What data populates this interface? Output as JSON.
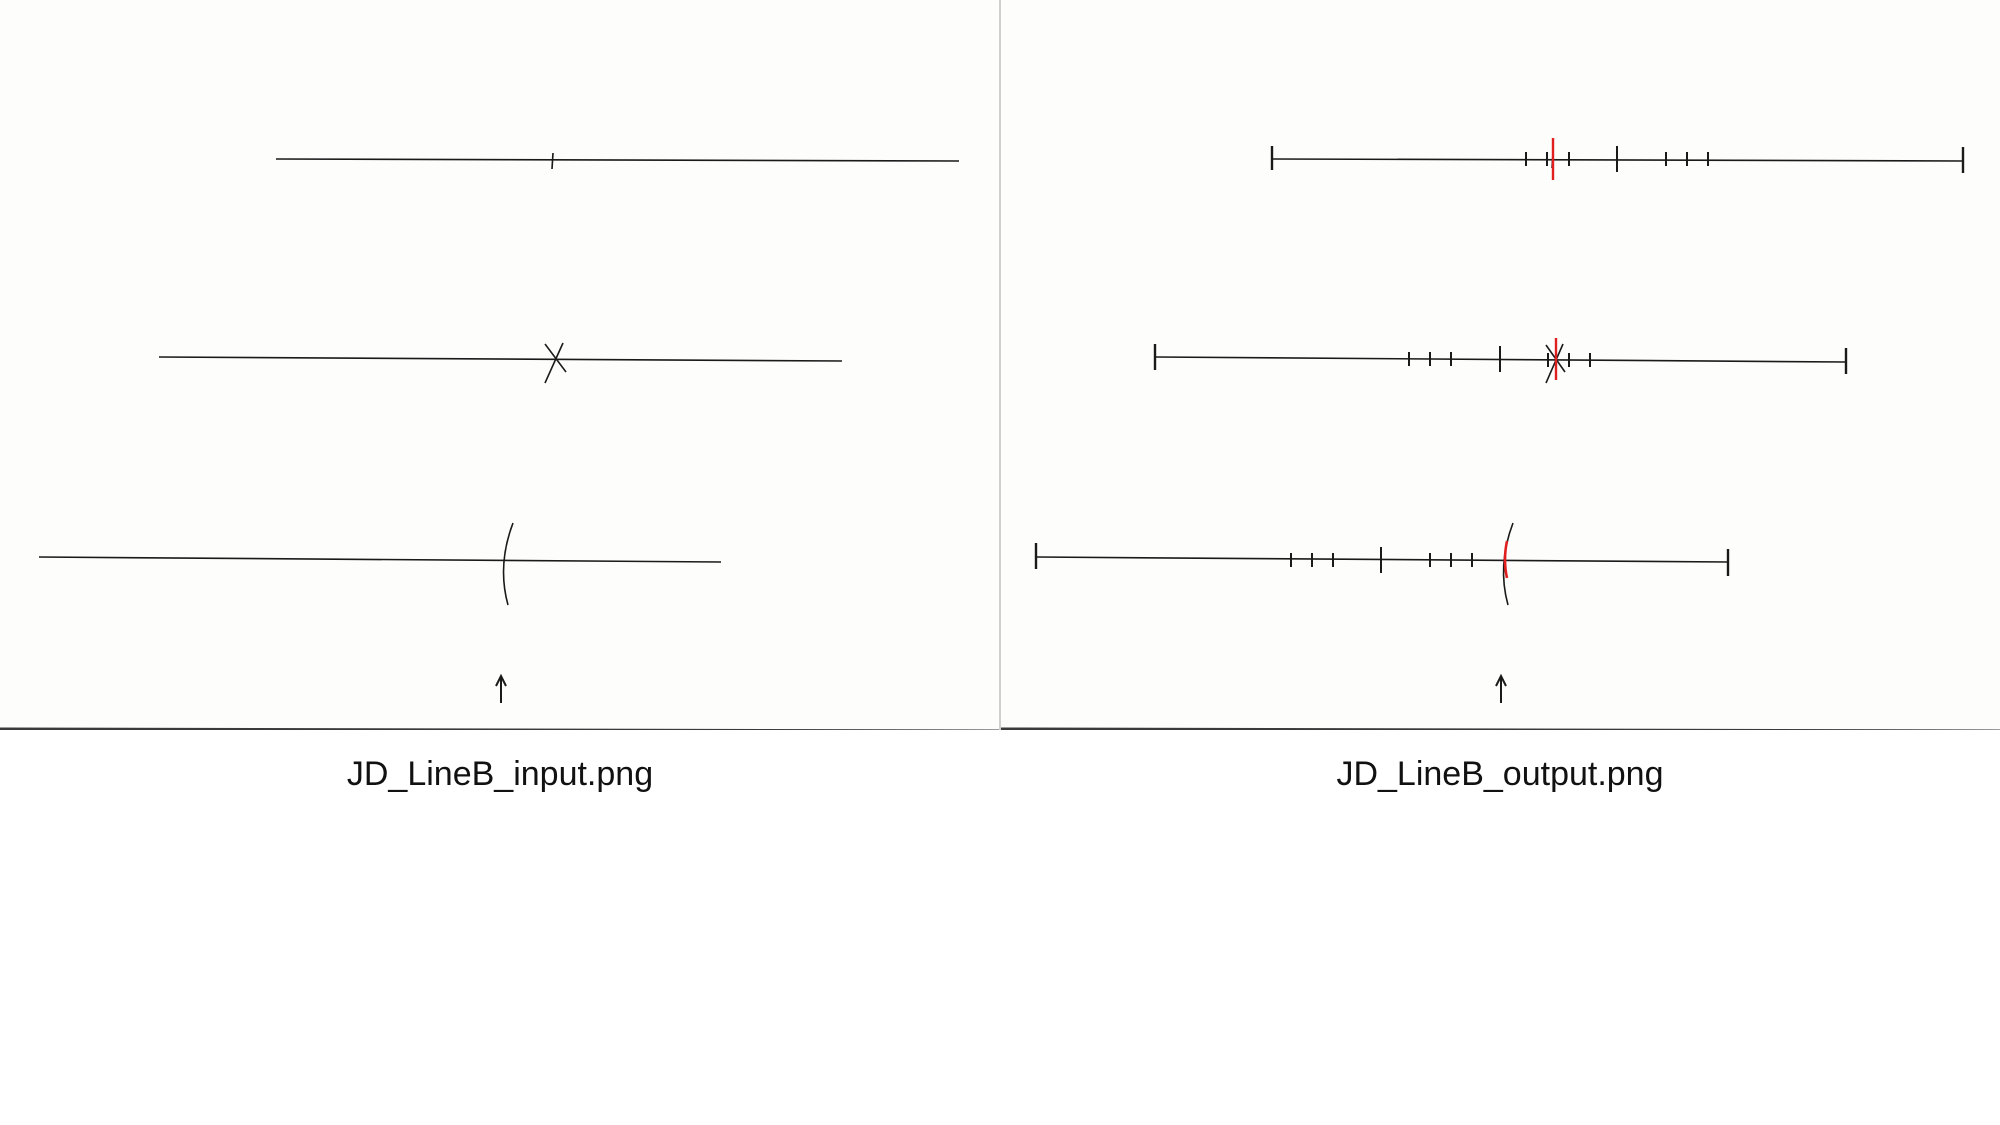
{
  "panels": [
    {
      "caption": "JD_LineB_input.png",
      "kind": "input",
      "content": "three hand-drawn horizontal lines with a short tick, an X mark, and an arc mark; upward arrow below"
    },
    {
      "caption": "JD_LineB_output.png",
      "kind": "output",
      "content": "same three lines with end caps, a scale of tick marks, and a red marker at each hand-drawn mark; upward arrow below"
    }
  ],
  "colors": {
    "ink": "#1a1a1a",
    "marker": "#e0201e",
    "paper": "#fdfdfc",
    "divider": "#cfcfcf",
    "baseline": "#3a3a3a"
  }
}
